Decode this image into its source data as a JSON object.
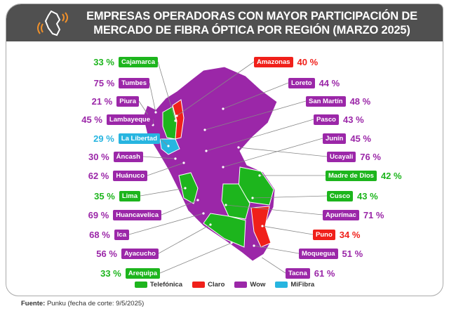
{
  "title": [
    "EMPRESAS OPERADORAS CON MAYOR PARTICIPACIÓN DE",
    "MERCADO DE FIBRA ÓPTICA POR REGIÓN (MARZO 2025)"
  ],
  "colors": {
    "Telefónica": "#1db51d",
    "Claro": "#f0201a",
    "Wow": "#9b27a8",
    "MiFibra": "#27b5e0",
    "header": "#505050"
  },
  "left": [
    {
      "region": "Cajamarca",
      "pct": "33 %",
      "op": "Telefónica"
    },
    {
      "region": "Tumbes",
      "pct": "75 %",
      "op": "Wow"
    },
    {
      "region": "Piura",
      "pct": "21 %",
      "op": "Wow"
    },
    {
      "region": "Lambayeque",
      "pct": "45 %",
      "op": "Wow"
    },
    {
      "region": "La Libertad",
      "pct": "29 %",
      "op": "MiFibra"
    },
    {
      "region": "Áncash",
      "pct": "30 %",
      "op": "Wow"
    },
    {
      "region": "Huánuco",
      "pct": "62 %",
      "op": "Wow"
    },
    {
      "region": "Lima",
      "pct": "35 %",
      "op": "Telefónica"
    },
    {
      "region": "Huancavelica",
      "pct": "69 %",
      "op": "Wow"
    },
    {
      "region": "Ica",
      "pct": "68 %",
      "op": "Wow"
    },
    {
      "region": "Ayacucho",
      "pct": "56 %",
      "op": "Wow"
    },
    {
      "region": "Arequipa",
      "pct": "33 %",
      "op": "Telefónica"
    }
  ],
  "right": [
    {
      "region": "Amazonas",
      "pct": "40 %",
      "op": "Claro"
    },
    {
      "region": "Loreto",
      "pct": "44 %",
      "op": "Wow"
    },
    {
      "region": "San Martín",
      "pct": "48 %",
      "op": "Wow"
    },
    {
      "region": "Pasco",
      "pct": "43 %",
      "op": "Wow"
    },
    {
      "region": "Junín",
      "pct": "45 %",
      "op": "Wow"
    },
    {
      "region": "Ucayali",
      "pct": "76 %",
      "op": "Wow"
    },
    {
      "region": "Madre de Dios",
      "pct": "42 %",
      "op": "Telefónica"
    },
    {
      "region": "Cusco",
      "pct": "43 %",
      "op": "Telefónica"
    },
    {
      "region": "Apurímac",
      "pct": "71 %",
      "op": "Wow"
    },
    {
      "region": "Puno",
      "pct": "34 %",
      "op": "Claro"
    },
    {
      "region": "Moquegua",
      "pct": "51 %",
      "op": "Wow"
    },
    {
      "region": "Tacna",
      "pct": "61 %",
      "op": "Wow"
    }
  ],
  "legend": [
    "Telefónica",
    "Claro",
    "Wow",
    "MiFibra"
  ],
  "source": {
    "label": "Fuente:",
    "text": "Punku (fecha de corte: 9/5/2025)"
  }
}
